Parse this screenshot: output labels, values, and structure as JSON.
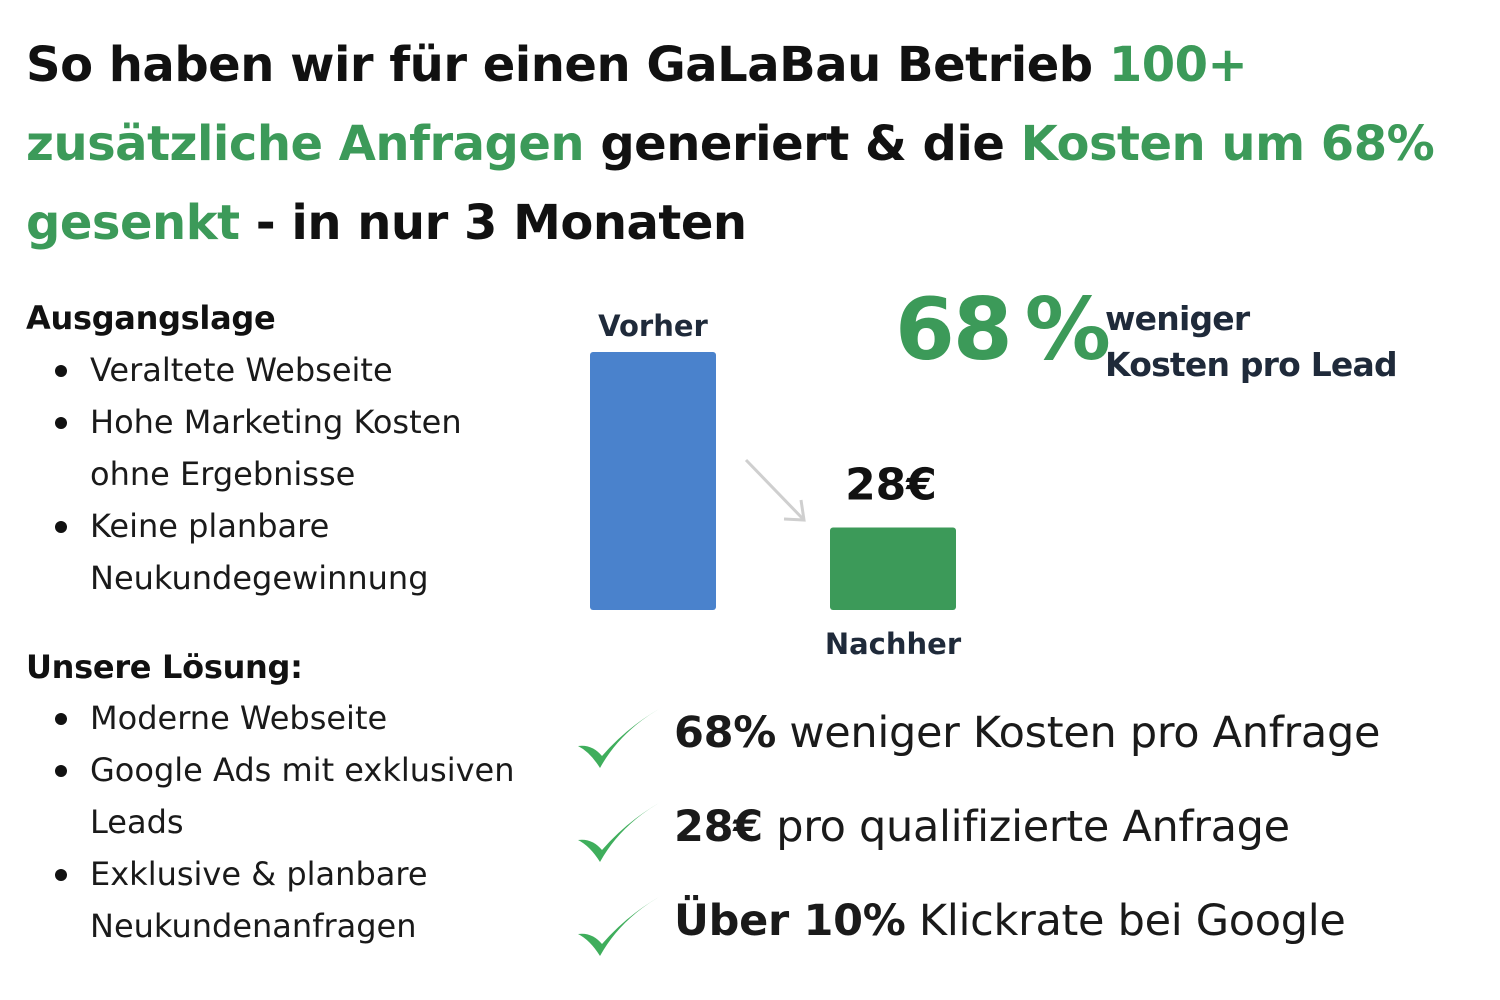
{
  "colors": {
    "accent": "#3c9a59",
    "bar_before": "#4a82cc",
    "bar_after": "#3c9a59",
    "arrow": "#cfcfcf",
    "check": "#3fae5c"
  },
  "headline": [
    {
      "text": "So haben wir für einen GaLaBau Betrieb ",
      "highlight": false
    },
    {
      "text": "100+ zusätzliche Anfragen",
      "highlight": true
    },
    {
      "text": " generiert & die ",
      "highlight": false
    },
    {
      "text": "Kosten um 68% gesenkt",
      "highlight": true
    },
    {
      "text": " - in nur 3 Monaten",
      "highlight": false
    }
  ],
  "ausgangslage": {
    "title": "Ausgangslage",
    "items": [
      "Veraltete Webseite",
      "Hohe Marketing Kosten ohne Ergebnisse",
      "Keine planbare Neukundegewinnung"
    ]
  },
  "loesung": {
    "title": "Unsere Lösung:",
    "items": [
      "Moderne Webseite",
      "Google Ads mit exklusiven Leads",
      "Exklusive & planbare Neukundenanfragen"
    ]
  },
  "chart_data": {
    "type": "bar",
    "categories": [
      "Vorher",
      "Nachher"
    ],
    "values": [
      87.5,
      28
    ],
    "data_labels": [
      "",
      "28€"
    ],
    "unit": "€"
  },
  "highlight_stat": {
    "value": "68",
    "unit": "%",
    "caption_line1": "weniger",
    "caption_line2": "Kosten pro Lead"
  },
  "results": [
    {
      "bold": "68%",
      "rest": " weniger Kosten pro Anfrage",
      "icon": "check-icon"
    },
    {
      "bold": "28€",
      "rest": " pro qualifizierte Anfrage",
      "icon": "check-icon"
    },
    {
      "bold": "Über 10%",
      "rest": " Klickrate bei Google",
      "icon": "check-icon"
    }
  ]
}
